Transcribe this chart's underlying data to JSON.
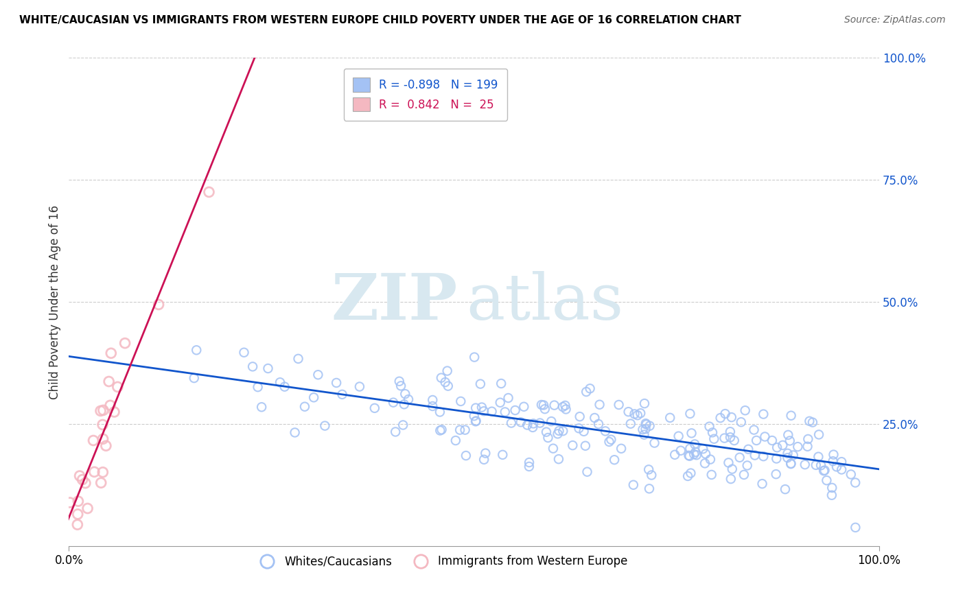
{
  "title": "WHITE/CAUCASIAN VS IMMIGRANTS FROM WESTERN EUROPE CHILD POVERTY UNDER THE AGE OF 16 CORRELATION CHART",
  "source": "Source: ZipAtlas.com",
  "ylabel": "Child Poverty Under the Age of 16",
  "watermark_zip": "ZIP",
  "watermark_atlas": "atlas",
  "blue_R": -0.898,
  "blue_N": 199,
  "pink_R": 0.842,
  "pink_N": 25,
  "blue_color": "#a4c2f4",
  "pink_color": "#f4b8c1",
  "blue_line_color": "#1155cc",
  "pink_line_color": "#cc1155",
  "legend_label_blue": "Whites/Caucasians",
  "legend_label_pink": "Immigrants from Western Europe",
  "xlim": [
    0.0,
    1.0
  ],
  "ylim": [
    0.0,
    1.0
  ],
  "right_ytick_vals": [
    0.25,
    0.5,
    0.75,
    1.0
  ],
  "right_yticklabels": [
    "25.0%",
    "50.0%",
    "75.0%",
    "100.0%"
  ],
  "seed": 7
}
